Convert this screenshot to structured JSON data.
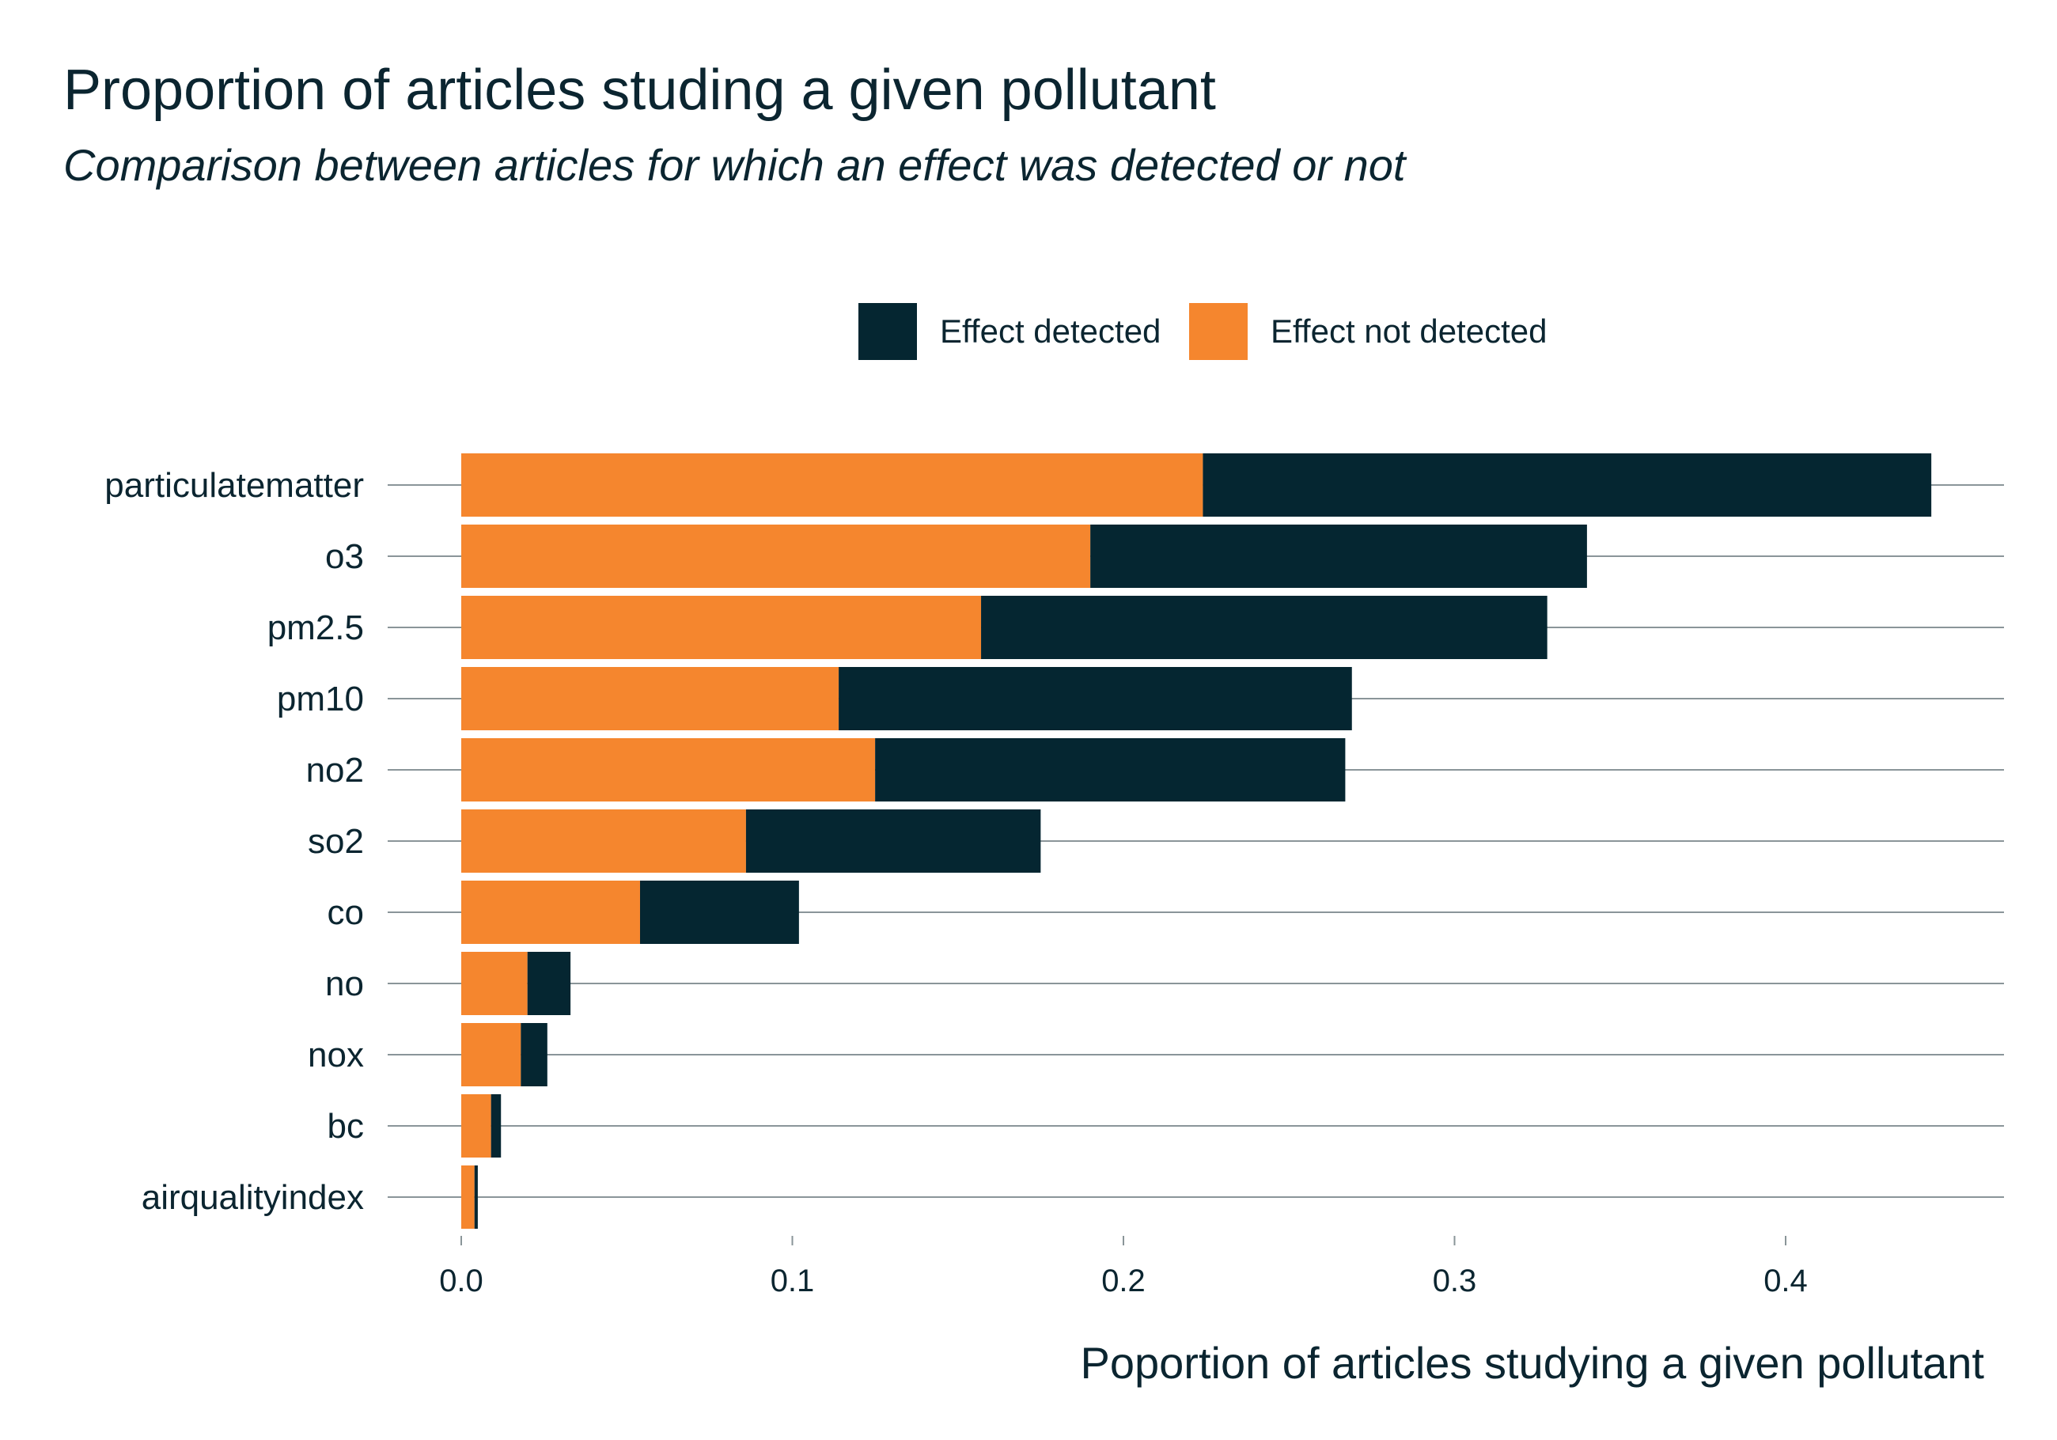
{
  "chart_data": {
    "type": "bar",
    "orientation": "horizontal",
    "stacked": true,
    "title": "Proportion of articles studing a given pollutant",
    "subtitle": "Comparison between articles for which an effect was detected or not",
    "xlabel": "Poportion of articles studying a given pollutant",
    "ylabel": "",
    "xlim": [
      0,
      0.46
    ],
    "xticks": [
      "0.0",
      "0.1",
      "0.2",
      "0.3",
      "0.4"
    ],
    "xtick_values": [
      0.0,
      0.1,
      0.2,
      0.3,
      0.4
    ],
    "grid": true,
    "legend_position": "top",
    "categories": [
      "particulatematter",
      "o3",
      "pm2.5",
      "pm10",
      "no2",
      "so2",
      "co",
      "no",
      "nox",
      "bc",
      "airqualityindex"
    ],
    "series": [
      {
        "name": "Effect not detected",
        "color": "#f5862e",
        "values": [
          0.224,
          0.19,
          0.157,
          0.114,
          0.125,
          0.086,
          0.054,
          0.02,
          0.018,
          0.009,
          0.004
        ]
      },
      {
        "name": "Effect detected",
        "color": "#052631",
        "values": [
          0.22,
          0.15,
          0.171,
          0.155,
          0.142,
          0.089,
          0.048,
          0.013,
          0.008,
          0.003,
          0.001
        ]
      }
    ],
    "legend": [
      {
        "label": "Effect detected",
        "color": "#052631"
      },
      {
        "label": "Effect not detected",
        "color": "#f5862e"
      }
    ]
  }
}
